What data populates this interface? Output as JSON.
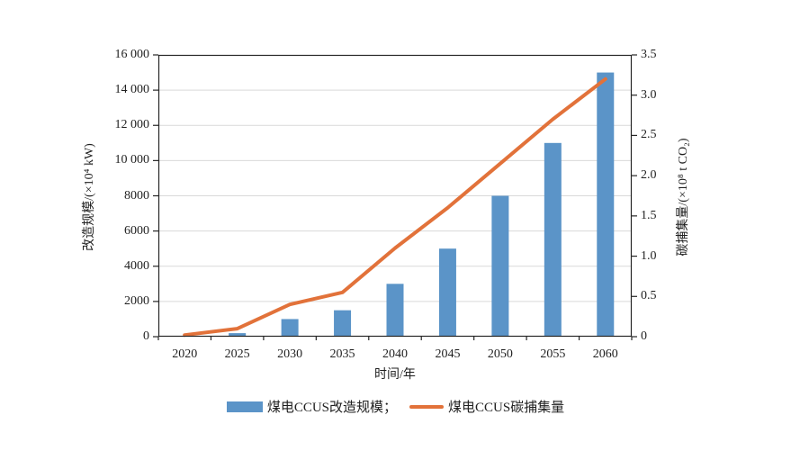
{
  "chart_data": {
    "type": "bar",
    "title": "",
    "categories": [
      "2020",
      "2025",
      "2030",
      "2035",
      "2040",
      "2045",
      "2050",
      "2055",
      "2060"
    ],
    "series": [
      {
        "name": "煤电CCUS改造规模",
        "type": "bar",
        "axis": "left",
        "color": "#5B94C8",
        "values": [
          0,
          200,
          1000,
          1500,
          3000,
          5000,
          8000,
          11000,
          15000
        ]
      },
      {
        "name": "煤电CCUS碳捕集量",
        "type": "line",
        "axis": "right",
        "color": "#E2723A",
        "values": [
          0.02,
          0.1,
          0.4,
          0.55,
          1.1,
          1.6,
          2.15,
          2.7,
          3.2
        ]
      }
    ],
    "x_axis": {
      "title": "时间/年"
    },
    "left_axis": {
      "title": "改造规模/(×10⁴ kW)",
      "min": 0,
      "max": 16000,
      "tick_labels": [
        "0",
        "2000",
        "4000",
        "6000",
        "8000",
        "10 000",
        "12 000",
        "14 000",
        "16 000"
      ]
    },
    "right_axis": {
      "title": "碳捕集量/(×10⁸ t CO₂)",
      "min": 0,
      "max": 3.5,
      "tick_labels": [
        "0",
        "0.5",
        "1.0",
        "1.5",
        "2.0",
        "2.5",
        "3.0",
        "3.5"
      ]
    },
    "legend": [
      {
        "label": "煤电CCUS改造规模；",
        "swatch": "bar"
      },
      {
        "label": "煤电CCUS碳捕集量",
        "swatch": "line"
      }
    ],
    "grid": true,
    "legend_position": "bottom",
    "colors": {
      "grid": "#D9D9D9",
      "axis": "#262626",
      "text": "#1f1f1f",
      "background": "#ffffff"
    }
  }
}
